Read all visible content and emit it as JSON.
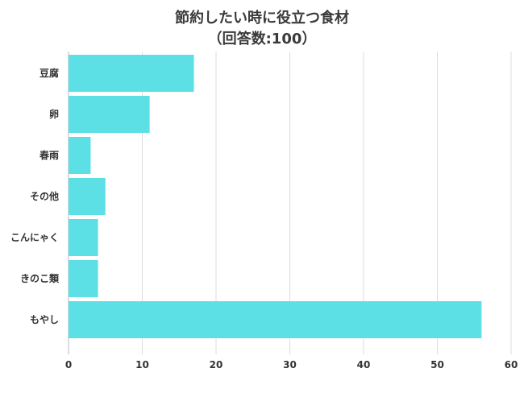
{
  "chart_data": {
    "type": "bar",
    "orientation": "horizontal",
    "title": "節約したい時に役立つ食材",
    "subtitle": "（回答数:100）",
    "categories": [
      "豆腐",
      "卵",
      "春雨",
      "その他",
      "こんにゃく",
      "きのこ類",
      "もやし"
    ],
    "values": [
      17,
      11,
      3,
      5,
      4,
      4,
      56
    ],
    "xlim": [
      0,
      60
    ],
    "xticks": [
      0,
      10,
      20,
      30,
      40,
      50,
      60
    ],
    "xlabel": "",
    "ylabel": "",
    "grid": true,
    "legend": "none",
    "bar_color": "#5ce0e6",
    "grid_color": "#dddddd"
  }
}
